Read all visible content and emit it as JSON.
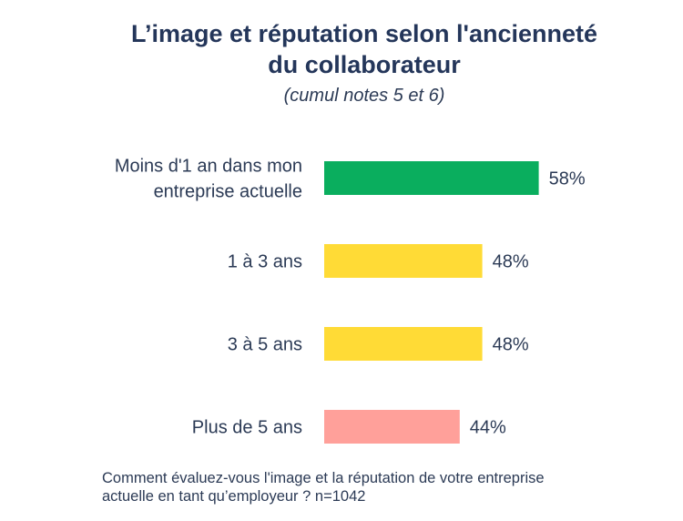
{
  "chart_data": {
    "type": "bar",
    "orientation": "horizontal",
    "title_line1": "L’image et réputation selon l'ancienneté",
    "title_line2": "du collaborateur",
    "subtitle": "(cumul notes 5 et 6)",
    "categories": [
      [
        "Moins d'1 an dans mon",
        "entreprise actuelle"
      ],
      [
        "1 à 3 ans"
      ],
      [
        "3 à 5 ans"
      ],
      [
        "Plus de 5 ans"
      ]
    ],
    "values": [
      58,
      48,
      48,
      44
    ],
    "value_labels": [
      "58%",
      "48%",
      "48%",
      "44%"
    ],
    "colors": [
      "#0aae5e",
      "#ffdb36",
      "#ffdb36",
      "#ffa09a"
    ],
    "xlim": [
      20,
      60
    ],
    "grid": false,
    "footnote_line1": "Comment évaluez-vous l'image et la réputation de votre entreprise",
    "footnote_line2": "actuelle en tant qu’employeur ? n=1042"
  }
}
